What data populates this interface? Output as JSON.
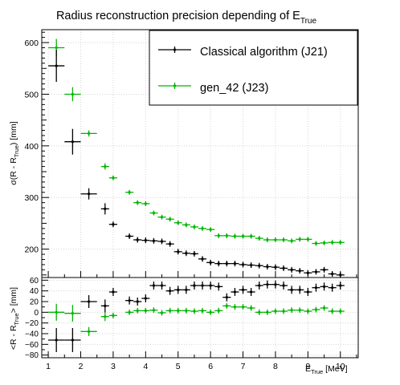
{
  "chart_data": [
    {
      "type": "scatter",
      "title": "Radius reconstruction precision depending of E",
      "title_sub": "True",
      "ylabel": "σ(R - R",
      "ylabel_sub": "True",
      "ylabel_suffix": ") [mm]",
      "xlabel": "E",
      "xlabel_sub": "True",
      "xlabel_unit": " [MeV]",
      "xlim": [
        0.8,
        10.55
      ],
      "ylim": [
        145,
        625
      ],
      "x_ticks": [
        1,
        2,
        3,
        4,
        5,
        6,
        7,
        8,
        9,
        10
      ],
      "y_ticks": [
        200,
        300,
        400,
        500,
        600
      ],
      "grid": true,
      "legend_position": "top-right",
      "series": [
        {
          "name": "Classical algorithm (J21)",
          "color": "#000000",
          "x": [
            1.25,
            1.75,
            2.25,
            2.75,
            3.0,
            3.5,
            3.75,
            4.0,
            4.25,
            4.5,
            4.75,
            5.0,
            5.25,
            5.5,
            5.75,
            6.0,
            6.25,
            6.5,
            6.75,
            7.0,
            7.25,
            7.5,
            7.75,
            8.0,
            8.25,
            8.5,
            8.75,
            9.0,
            9.25,
            9.5,
            9.75,
            10.0
          ],
          "y": [
            555,
            408,
            307,
            278,
            248,
            225,
            218,
            217,
            216,
            215,
            210,
            195,
            192,
            191,
            181,
            174,
            172,
            172,
            172,
            170,
            169,
            168,
            166,
            165,
            163,
            160,
            158,
            154,
            156,
            160,
            152,
            150
          ]
        },
        {
          "name": "gen_42 (J23)",
          "color": "#00b400",
          "x": [
            1.25,
            1.75,
            2.25,
            2.75,
            3.0,
            3.5,
            3.75,
            4.0,
            4.25,
            4.5,
            4.75,
            5.0,
            5.25,
            5.5,
            5.75,
            6.0,
            6.25,
            6.5,
            6.75,
            7.0,
            7.25,
            7.5,
            7.75,
            8.0,
            8.25,
            8.5,
            8.75,
            9.0,
            9.25,
            9.5,
            9.75,
            10.0
          ],
          "y": [
            590,
            500,
            424,
            360,
            338,
            310,
            290,
            288,
            270,
            262,
            258,
            251,
            247,
            243,
            240,
            238,
            226,
            226,
            225,
            225,
            225,
            221,
            218,
            218,
            218,
            216,
            219,
            219,
            211,
            212,
            213,
            213
          ]
        }
      ]
    },
    {
      "type": "scatter",
      "ylabel": "<R - R",
      "ylabel_sub": "True",
      "ylabel_suffix": "> [mm]",
      "xlim": [
        0.8,
        10.55
      ],
      "ylim": [
        -85,
        65
      ],
      "y_ticks": [
        -80,
        -60,
        -40,
        -20,
        0,
        20,
        40,
        60
      ],
      "grid": true,
      "series": [
        {
          "color": "#000000",
          "x": [
            1.25,
            1.75,
            2.25,
            2.75,
            3.0,
            3.5,
            3.75,
            4.0,
            4.25,
            4.5,
            4.75,
            5.0,
            5.25,
            5.5,
            5.75,
            6.0,
            6.25,
            6.5,
            6.75,
            7.0,
            7.25,
            7.5,
            7.75,
            8.0,
            8.25,
            8.5,
            8.75,
            9.0,
            9.25,
            9.5,
            9.75,
            10.0
          ],
          "y": [
            -52,
            -52,
            20,
            12,
            38,
            22,
            20,
            26,
            50,
            50,
            40,
            42,
            42,
            50,
            50,
            50,
            48,
            28,
            38,
            42,
            38,
            50,
            52,
            52,
            50,
            42,
            42,
            38,
            46,
            48,
            46,
            50
          ]
        },
        {
          "color": "#00b400",
          "x": [
            1.25,
            1.75,
            2.25,
            2.75,
            3.0,
            3.5,
            3.75,
            4.0,
            4.25,
            4.5,
            4.75,
            5.0,
            5.25,
            5.5,
            5.75,
            6.0,
            6.25,
            6.5,
            6.75,
            7.0,
            7.25,
            7.5,
            7.75,
            8.0,
            8.25,
            8.5,
            8.75,
            9.0,
            9.25,
            9.5,
            9.75,
            10.0
          ],
          "y": [
            0,
            -2,
            -36,
            -8,
            -6,
            0,
            3,
            3,
            4,
            -1,
            3,
            3,
            3,
            2,
            3,
            0,
            3,
            12,
            10,
            10,
            8,
            0,
            0,
            2,
            2,
            4,
            4,
            2,
            5,
            8,
            2,
            2
          ]
        }
      ]
    }
  ]
}
